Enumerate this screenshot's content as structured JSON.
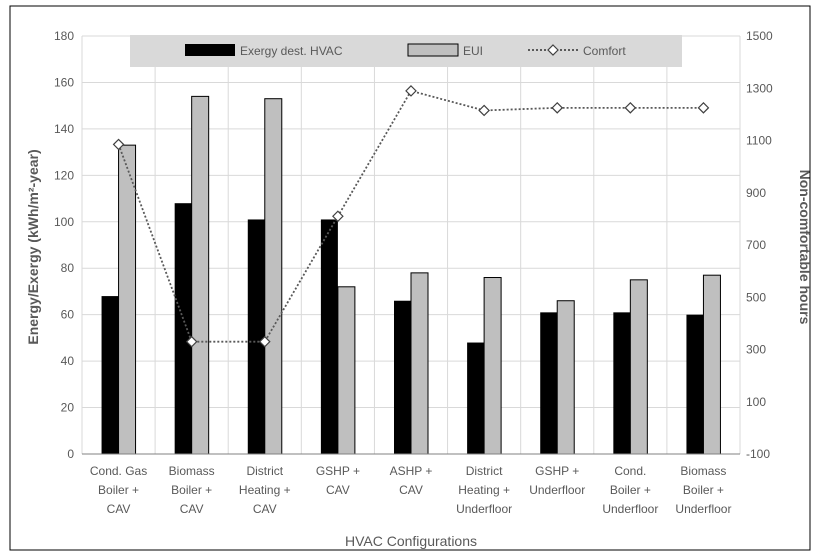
{
  "chart_data": {
    "type": "bar",
    "xlabel": "HVAC Configurations",
    "ylabel": "Energy/Exergy (kWh/m²-year)",
    "y2label": "Non-comfortable hours",
    "ylim": [
      0,
      180
    ],
    "y2lim": [
      -100,
      1500
    ],
    "yticks": [
      "0",
      "20",
      "40",
      "60",
      "80",
      "100",
      "120",
      "140",
      "160",
      "180"
    ],
    "y2ticks": [
      "-100",
      "100",
      "300",
      "500",
      "700",
      "900",
      "1100",
      "1300",
      "1500"
    ],
    "grid": true,
    "legend_position": "top",
    "categories": [
      [
        "Cond. Gas",
        "Boiler +",
        "CAV"
      ],
      [
        "Biomass",
        "Boiler +",
        "CAV"
      ],
      [
        "District",
        "Heating +",
        "CAV"
      ],
      [
        "GSHP +",
        "CAV"
      ],
      [
        "ASHP +",
        "CAV"
      ],
      [
        "District",
        "Heating +",
        "Underfloor"
      ],
      [
        "GSHP +",
        "Underfloor"
      ],
      [
        "Cond.",
        "Boiler +",
        "Underfloor"
      ],
      [
        "Biomass",
        "Boiler +",
        "Underfloor"
      ]
    ],
    "series": [
      {
        "name": "Exergy dest. HVAC",
        "kind": "bar",
        "axis": "left",
        "color": "#000000",
        "values": [
          68,
          108,
          101,
          101,
          66,
          48,
          61,
          61,
          60
        ]
      },
      {
        "name": "EUI",
        "kind": "bar",
        "axis": "left",
        "color": "#bfbfbf",
        "values": [
          133,
          154,
          153,
          72,
          78,
          76,
          66,
          75,
          77
        ]
      },
      {
        "name": "Comfort",
        "kind": "line",
        "axis": "right",
        "color": "#595959",
        "values": [
          1085,
          330,
          330,
          810,
          1290,
          1215,
          1225,
          1225,
          1225
        ]
      }
    ]
  }
}
